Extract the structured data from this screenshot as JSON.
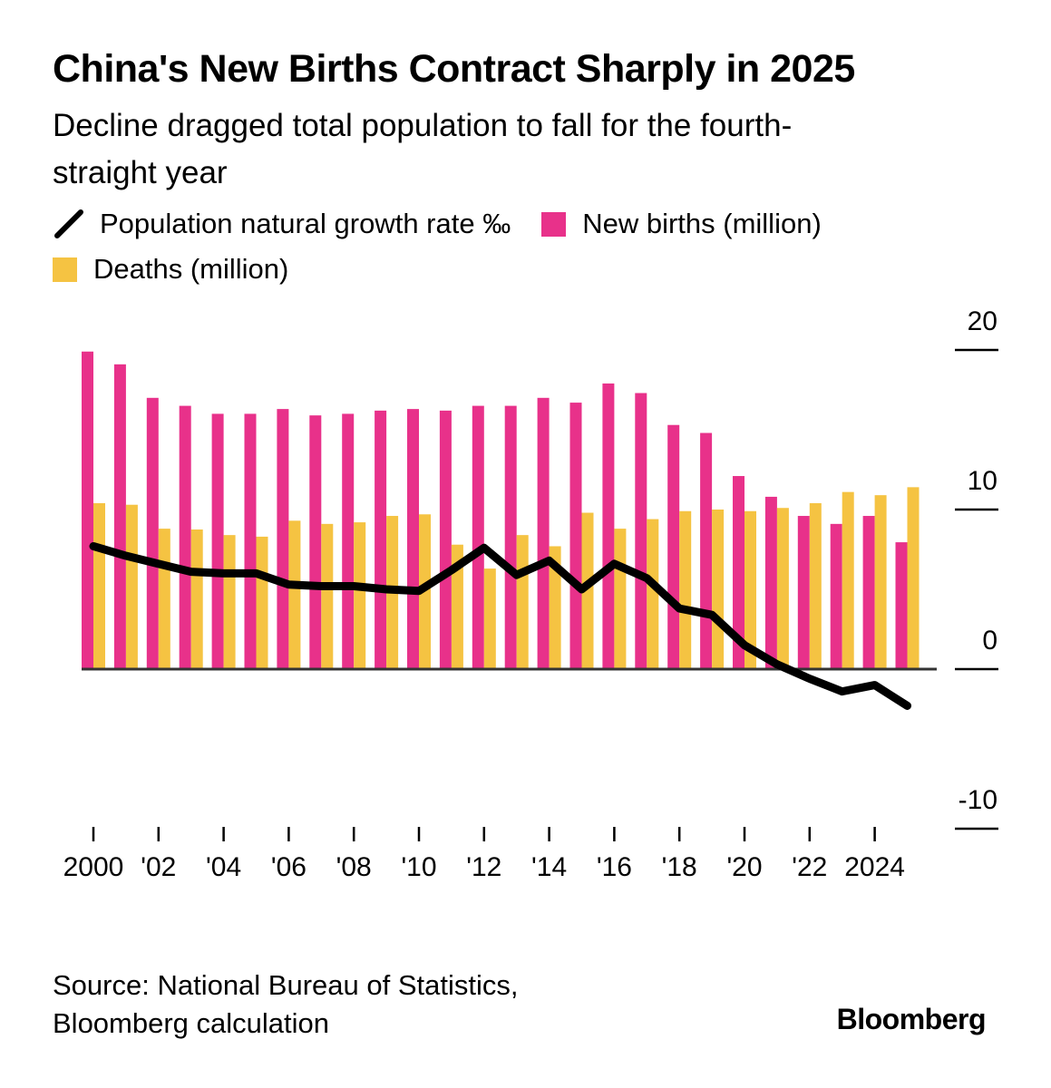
{
  "header": {
    "title": "China's New Births Contract Sharply in 2025",
    "subtitle": "Decline dragged total population to fall for the fourth-straight year"
  },
  "legend": {
    "items": [
      {
        "label": "Population natural growth rate ‰",
        "type": "line",
        "color": "#000000",
        "icon": "diagonal-line-icon"
      },
      {
        "label": "New births (million)",
        "type": "bar",
        "color": "#E8318A",
        "icon": "square-swatch-icon"
      },
      {
        "label": "Deaths (million)",
        "type": "bar",
        "color": "#F5C342",
        "icon": "square-swatch-icon"
      }
    ]
  },
  "footer": {
    "source": "Source: National Bureau of Statistics, Bloomberg calculation",
    "brand": "Bloomberg"
  },
  "chart_data": {
    "type": "bar",
    "title": "China's New Births Contract Sharply in 2025",
    "subtitle": "Decline dragged total population to fall for the fourth-straight year",
    "xlabel": "",
    "ylabel": "",
    "x": [
      2000,
      2001,
      2002,
      2003,
      2004,
      2005,
      2006,
      2007,
      2008,
      2009,
      2010,
      2011,
      2012,
      2013,
      2014,
      2015,
      2016,
      2017,
      2018,
      2019,
      2020,
      2021,
      2022,
      2023,
      2024,
      2025
    ],
    "x_tick_labels": [
      {
        "year": 2000,
        "label": "2000"
      },
      {
        "year": 2002,
        "label": "'02"
      },
      {
        "year": 2004,
        "label": "'04"
      },
      {
        "year": 2006,
        "label": "'06"
      },
      {
        "year": 2008,
        "label": "'08"
      },
      {
        "year": 2010,
        "label": "'10"
      },
      {
        "year": 2012,
        "label": "'12"
      },
      {
        "year": 2014,
        "label": "'14"
      },
      {
        "year": 2016,
        "label": "'16"
      },
      {
        "year": 2018,
        "label": "'18"
      },
      {
        "year": 2020,
        "label": "'20"
      },
      {
        "year": 2022,
        "label": "'22"
      },
      {
        "year": 2024,
        "label": "2024"
      }
    ],
    "y_ticks": [
      20,
      10,
      0,
      -10
    ],
    "y_tick_labels": [
      "20",
      "10",
      "0",
      "-10"
    ],
    "ylim": [
      -10,
      20
    ],
    "y_axis_side": "right",
    "grid": false,
    "legend_position": "top-left",
    "series": [
      {
        "name": "New births (million)",
        "type": "bar",
        "color": "#E8318A",
        "values": [
          19.9,
          19.1,
          17.0,
          16.5,
          16.0,
          16.0,
          16.3,
          15.9,
          16.0,
          16.2,
          16.3,
          16.2,
          16.5,
          16.5,
          17.0,
          16.7,
          17.9,
          17.3,
          15.3,
          14.8,
          12.1,
          10.8,
          9.6,
          9.1,
          9.6,
          7.95
        ]
      },
      {
        "name": "Deaths (million)",
        "type": "bar",
        "color": "#F5C342",
        "values": [
          10.4,
          10.3,
          8.8,
          8.75,
          8.4,
          8.3,
          9.3,
          9.1,
          9.2,
          9.6,
          9.7,
          7.8,
          6.3,
          8.4,
          7.7,
          9.8,
          8.8,
          9.4,
          9.9,
          10.0,
          9.9,
          10.1,
          10.4,
          11.1,
          10.9,
          11.4
        ]
      },
      {
        "name": "Population natural growth rate ‰",
        "type": "line",
        "color": "#000000",
        "values": [
          7.7,
          7.1,
          6.6,
          6.1,
          6.0,
          6.0,
          5.3,
          5.2,
          5.2,
          5.0,
          4.9,
          6.2,
          7.6,
          5.9,
          6.8,
          5.0,
          6.6,
          5.7,
          3.8,
          3.4,
          1.5,
          0.3,
          -0.6,
          -1.4,
          -1.0,
          -2.3
        ]
      }
    ]
  }
}
